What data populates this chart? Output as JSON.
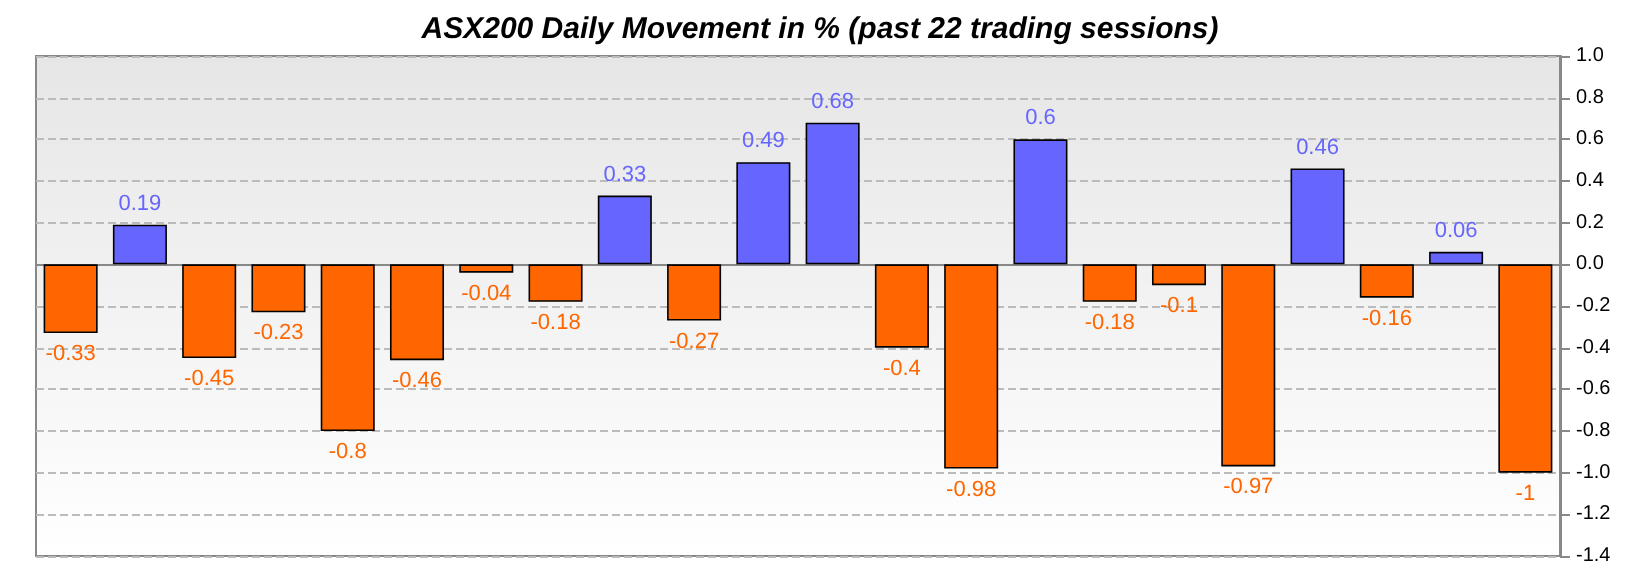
{
  "chart_data": {
    "type": "bar",
    "title": "ASX200 Daily Movement in % (past 22 trading sessions)",
    "categories": [
      null,
      null,
      null,
      null,
      null,
      null,
      null,
      null,
      null,
      null,
      null,
      null,
      null,
      null,
      null,
      null,
      null,
      null,
      null,
      null,
      null,
      null
    ],
    "values": [
      -0.33,
      0.19,
      -0.45,
      -0.23,
      -0.8,
      -0.46,
      -0.04,
      -0.18,
      0.33,
      -0.27,
      0.49,
      0.68,
      -0.4,
      -0.98,
      0.6,
      -0.18,
      -0.1,
      -0.97,
      0.46,
      -0.16,
      0.06,
      -1
    ],
    "colors": [
      "#ff6600",
      "#6666ff",
      "#ff6600",
      "#ff6600",
      "#ff6600",
      "#ff6600",
      "#ff6600",
      "#ff6600",
      "#6666ff",
      "#ff6600",
      "#6666ff",
      "#6666ff",
      "#ff6600",
      "#ff6600",
      "#6666ff",
      "#ff6600",
      "#ff6600",
      "#ff6600",
      "#6666ff",
      "#ff6600",
      "#6666ff",
      "#ff6600"
    ],
    "ylim": [
      -1.4,
      1.0
    ],
    "yticks": [
      {
        "value": -1.4,
        "label": "-1.4"
      },
      {
        "value": -1.2,
        "label": "-1.2"
      },
      {
        "value": -1.0,
        "label": "-1.0"
      },
      {
        "value": -0.8,
        "label": "-0.8"
      },
      {
        "value": -0.6,
        "label": "-0.6"
      },
      {
        "value": -0.4,
        "label": "-0.4"
      },
      {
        "value": -0.2,
        "label": "-0.2"
      },
      {
        "value": 0,
        "label": "0.0"
      },
      {
        "value": 0.2,
        "label": "0.2"
      },
      {
        "value": 0.4,
        "label": "0.4"
      },
      {
        "value": 0.6,
        "label": "0.6"
      },
      {
        "value": 0.8,
        "label": "0.8"
      },
      {
        "value": 1.0,
        "label": "1.0"
      }
    ],
    "data_labels": true,
    "grid": "y"
  }
}
